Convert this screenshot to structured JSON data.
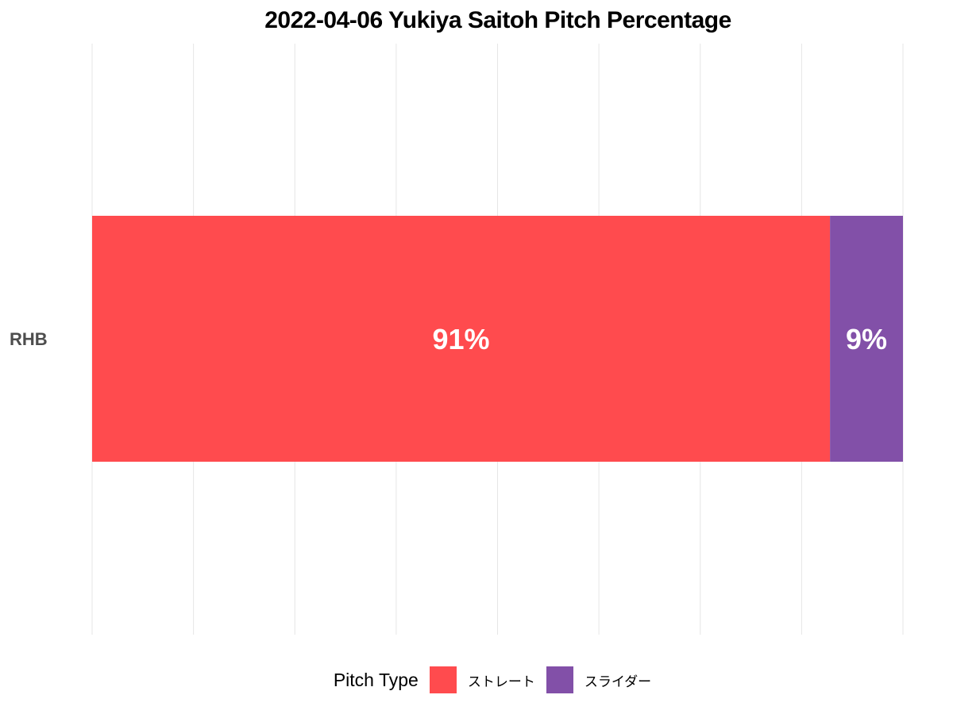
{
  "chart_data": {
    "type": "bar",
    "orientation": "horizontal",
    "stacked": true,
    "title": "2022-04-06 Yukiya Saitoh Pitch Percentage",
    "categories": [
      "RHB"
    ],
    "series": [
      {
        "name": "ストレート",
        "values": [
          91
        ],
        "color": "#FF4B4E",
        "label": "91%"
      },
      {
        "name": "スライダー",
        "values": [
          9
        ],
        "color": "#8250A8",
        "label": "9%"
      }
    ],
    "xlim": [
      0,
      100
    ],
    "grid": true,
    "axis_ticks_shown": false,
    "legend": {
      "title": "Pitch Type",
      "position": "bottom"
    }
  }
}
